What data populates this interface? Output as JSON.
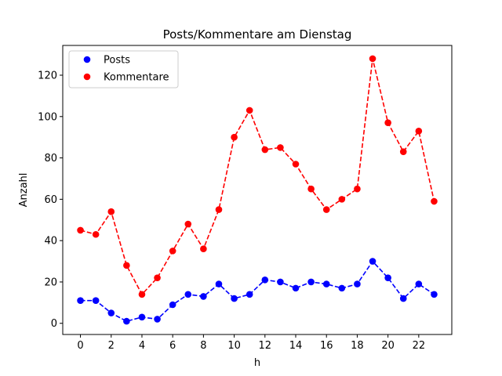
{
  "chart_data": {
    "type": "line",
    "title": "Posts/Kommentare am Dienstag",
    "xlabel": "h",
    "ylabel": "Anzahl",
    "x": [
      0,
      1,
      2,
      3,
      4,
      5,
      6,
      7,
      8,
      9,
      10,
      11,
      12,
      13,
      14,
      15,
      16,
      17,
      18,
      19,
      20,
      21,
      22,
      23
    ],
    "xlim": [
      -1.15,
      24.15
    ],
    "ylim": [
      -5.4,
      134.4
    ],
    "xticks": [
      0,
      2,
      4,
      6,
      8,
      10,
      12,
      14,
      16,
      18,
      20,
      22
    ],
    "xtick_labels": [
      "0",
      "2",
      "4",
      "6",
      "8",
      "10",
      "12",
      "14",
      "16",
      "18",
      "20",
      "22"
    ],
    "yticks": [
      0,
      20,
      40,
      60,
      80,
      100,
      120
    ],
    "ytick_labels": [
      "0",
      "20",
      "40",
      "60",
      "80",
      "100",
      "120"
    ],
    "grid": false,
    "legend_position": "top-left",
    "series": [
      {
        "name": "Posts",
        "color": "#0000ff",
        "style": "dashed line with circle markers",
        "values": [
          11,
          11,
          5,
          1,
          3,
          2,
          9,
          14,
          13,
          19,
          12,
          14,
          21,
          20,
          17,
          20,
          19,
          17,
          19,
          30,
          22,
          12,
          19,
          14
        ]
      },
      {
        "name": "Kommentare",
        "color": "#ff0000",
        "style": "dashed line with circle markers",
        "values": [
          45,
          43,
          54,
          28,
          14,
          22,
          35,
          48,
          36,
          55,
          90,
          103,
          84,
          85,
          77,
          65,
          55,
          60,
          65,
          128,
          97,
          83,
          93,
          59
        ]
      }
    ]
  }
}
